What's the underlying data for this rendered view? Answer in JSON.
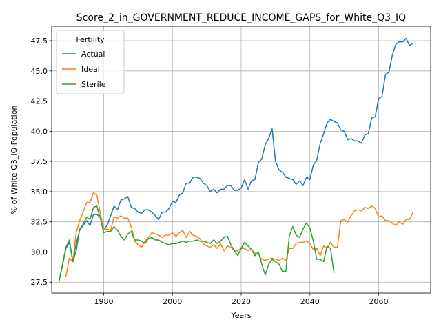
{
  "chart_data": {
    "type": "line",
    "title": "Score_2_in_GOVERNMENT_REDUCE_INCOME_GAPS_for_White_Q3_IQ",
    "xlabel": "Years",
    "ylabel": "% of White Q3_IQ Population",
    "xlim": [
      1964.85,
      2075.15
    ],
    "ylim": [
      26.6,
      48.7
    ],
    "xticks": [
      1980,
      2000,
      2020,
      2040,
      2060
    ],
    "yticks": [
      27.5,
      30.0,
      32.5,
      35.0,
      37.5,
      40.0,
      42.5,
      45.0,
      47.5
    ],
    "ytick_labels": [
      "27.5",
      "30.0",
      "32.5",
      "35.0",
      "37.5",
      "40.0",
      "42.5",
      "45.0",
      "47.5"
    ],
    "grid": true,
    "legend": {
      "title": "Fertility",
      "position": "top-left"
    },
    "series": [
      {
        "name": "Actual",
        "color": "#1f77b4",
        "x_start": 1967,
        "values": [
          27.6,
          28.9,
          30.3,
          30.8,
          29.3,
          30.7,
          31.8,
          32.2,
          32.6,
          32.2,
          33.1,
          33.1,
          32.9,
          31.9,
          32.2,
          33.0,
          33.8,
          33.5,
          34.3,
          34.4,
          34.6,
          33.7,
          33.6,
          33.3,
          33.2,
          33.5,
          33.5,
          33.3,
          33.0,
          32.7,
          33.3,
          33.3,
          33.6,
          34.2,
          34.1,
          34.7,
          34.9,
          35.7,
          35.7,
          36.2,
          36.2,
          36.1,
          35.7,
          35.5,
          35.0,
          35.2,
          34.9,
          35.2,
          35.2,
          35.5,
          35.5,
          35.1,
          35.1,
          35.3,
          36.0,
          35.2,
          35.9,
          36.0,
          37.4,
          37.7,
          38.9,
          39.4,
          40.2,
          37.5,
          36.8,
          36.6,
          36.2,
          36.1,
          36.0,
          35.6,
          35.9,
          35.5,
          36.2,
          36.0,
          37.2,
          37.6,
          39.0,
          39.8,
          40.7,
          41.0,
          40.8,
          40.7,
          40.1,
          40.0,
          39.3,
          39.4,
          39.2,
          39.2,
          39.0,
          39.7,
          39.8,
          41.1,
          41.2,
          42.7,
          42.9,
          44.7,
          44.9,
          46.3,
          47.2,
          47.4,
          47.4,
          47.7,
          47.1,
          47.3
        ]
      },
      {
        "name": "Ideal",
        "color": "#ff7f0e",
        "x_start": 1969,
        "values": [
          28.0,
          29.5,
          29.2,
          31.6,
          32.6,
          33.3,
          34.1,
          34.1,
          34.9,
          34.7,
          33.2,
          31.9,
          31.9,
          31.8,
          32.9,
          32.8,
          33.0,
          32.8,
          32.8,
          32.1,
          30.9,
          30.6,
          30.4,
          30.9,
          31.2,
          31.6,
          31.5,
          31.4,
          31.2,
          31.4,
          31.4,
          31.6,
          31.3,
          31.6,
          31.8,
          31.2,
          31.7,
          31.4,
          31.3,
          31.1,
          30.7,
          30.5,
          30.4,
          30.6,
          30.3,
          30.7,
          30.1,
          30.5,
          30.4,
          30.1,
          30.1,
          30.3,
          30.3,
          30.1,
          30.2,
          29.9,
          29.9,
          29.4,
          29.3,
          29.4,
          29.5,
          29.4,
          29.3,
          29.5,
          29.3,
          30.3,
          30.3,
          30.7,
          30.8,
          30.8,
          30.9,
          30.7,
          30.2,
          30.3,
          29.7,
          30.5,
          30.3,
          30.8,
          30.4,
          30.4,
          32.6,
          32.7,
          32.5,
          33.0,
          33.4,
          33.5,
          33.4,
          33.7,
          33.6,
          33.8,
          33.6,
          32.9,
          33.0,
          32.6,
          32.6,
          32.4,
          32.2,
          32.5,
          32.3,
          32.7,
          32.7,
          33.3
        ]
      },
      {
        "name": "Sterile",
        "color": "#2ca02c",
        "x_start": 1967,
        "values": [
          27.6,
          29.0,
          30.4,
          31.0,
          29.2,
          30.1,
          31.9,
          32.3,
          32.9,
          32.7,
          33.7,
          33.8,
          32.8,
          31.6,
          31.7,
          31.7,
          32.1,
          31.8,
          31.3,
          31.0,
          31.5,
          31.7,
          31.0,
          31.0,
          30.9,
          30.7,
          31.1,
          31.2,
          31.0,
          31.0,
          30.8,
          30.7,
          30.6,
          30.7,
          30.7,
          30.8,
          30.9,
          30.8,
          30.9,
          30.9,
          31.0,
          30.9,
          30.9,
          30.8,
          30.7,
          31.0,
          30.7,
          30.9,
          31.2,
          31.3,
          30.6,
          30.1,
          29.7,
          30.3,
          30.8,
          30.5,
          30.2,
          29.7,
          30.0,
          29.0,
          28.1,
          29.0,
          29.4,
          29.2,
          29.0,
          28.4,
          28.4,
          31.3,
          32.1,
          31.4,
          31.2,
          31.9,
          32.4,
          32.0,
          30.9,
          29.4,
          29.4,
          29.2,
          30.5,
          30.3,
          28.3
        ]
      }
    ]
  }
}
